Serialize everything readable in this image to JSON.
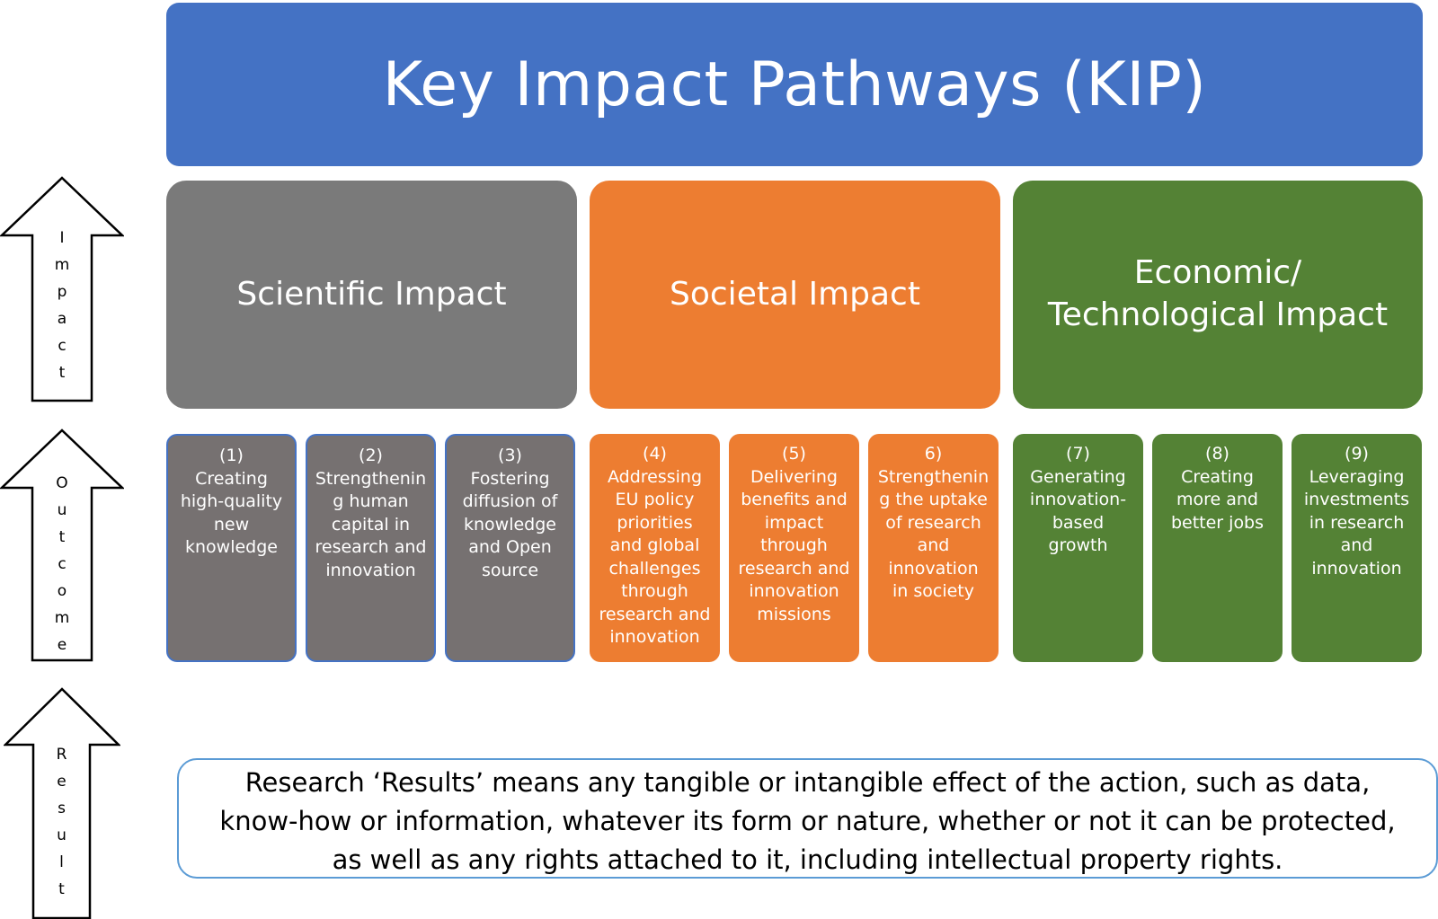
{
  "title": "Key Impact Pathways (KIP)",
  "impacts": [
    {
      "label": "Scientific Impact",
      "color": "#7a7a7a"
    },
    {
      "label": "Societal Impact",
      "color": "#ed7d31"
    },
    {
      "label": "Economic/\nTechnological Impact",
      "color": "#548235"
    }
  ],
  "outcomes": [
    {
      "text": "(1)\nCreating\nhigh-quality\nnew\nknowledge"
    },
    {
      "text": "(2)\nStrengthenin\ng human\ncapital in\nresearch and\ninnovation"
    },
    {
      "text": "(3)\nFostering\ndiffusion of\nknowledge\nand Open\nsource"
    },
    {
      "text": "(4)\nAddressing\nEU policy\npriorities\nand global\nchallenges\nthrough\nresearch and\ninnovation"
    },
    {
      "text": "(5)\nDelivering\nbenefits and\nimpact\nthrough\nresearch and\ninnovation\nmissions"
    },
    {
      "text": "6)\nStrengthenin\ng the uptake\nof research\nand\ninnovation\nin society"
    },
    {
      "text": "(7)\nGenerating\ninnovation-\nbased\ngrowth"
    },
    {
      "text": "(8)\nCreating\nmore and\nbetter jobs"
    },
    {
      "text": "(9)\nLeveraging\ninvestments\nin research\nand\ninnovation"
    }
  ],
  "result_text": "Research ‘Results’ means any tangible or intangible effect of the action, such as data, know-how or information, whatever its form or nature, whether or not it can be protected, as well as any rights attached to it, including intellectual property rights.",
  "arrows": {
    "impact": "I\nm\np\na\nc\nt",
    "outcome": "O\nu\nt\nc\no\nm\ne",
    "result": "R\ne\ns\nu\nl\nt"
  }
}
